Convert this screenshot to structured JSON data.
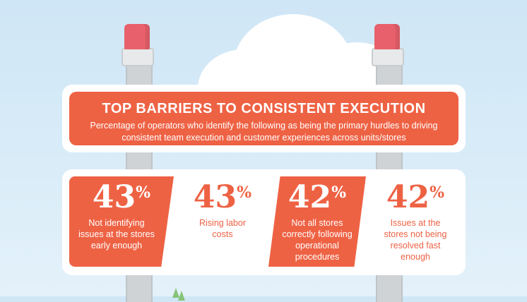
{
  "header": {
    "title": "TOP BARRIERS TO CONSISTENT EXECUTION",
    "subtitle": "Percentage of operators who identify the following as being the primary hurdles to driving consistent team execution and customer experiences across units/stores"
  },
  "stats": [
    {
      "value": "43",
      "unit": "%",
      "label": "Not identifying issues at the stores early enough"
    },
    {
      "value": "43",
      "unit": "%",
      "label": "Rising labor costs"
    },
    {
      "value": "42",
      "unit": "%",
      "label": "Not all stores correctly following operational procedures"
    },
    {
      "value": "42",
      "unit": "%",
      "label": "Issues at the stores not being resolved fast enough"
    }
  ],
  "colors": {
    "accent": "#ee6244",
    "sky": "#d4e9f7",
    "post": "#cfd3d6",
    "cap": "#e8606b",
    "card": "#ffffff"
  }
}
